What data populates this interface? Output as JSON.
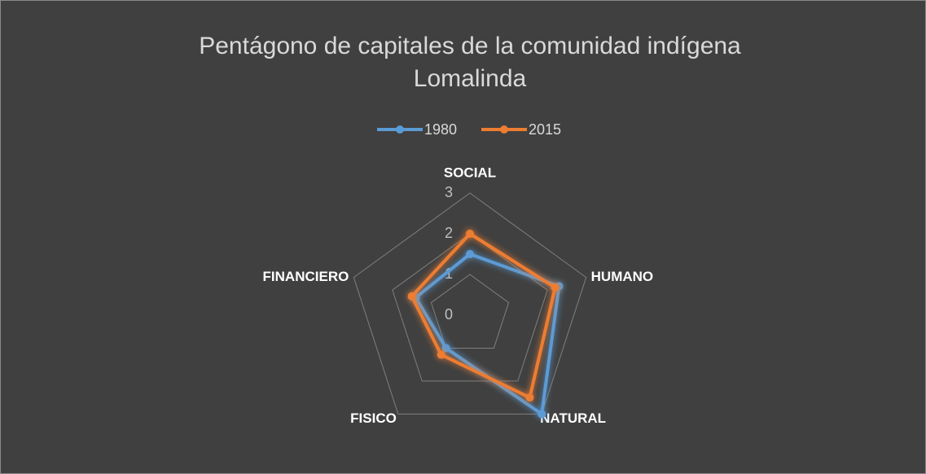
{
  "chart_data": {
    "type": "radar",
    "title": "Pentágono de capitales de la comunidad indígena Lomalinda",
    "categories": [
      "SOCIAL",
      "HUMANO",
      "NATURAL",
      "FISICO",
      "FINANCIERO"
    ],
    "series": [
      {
        "name": "1980",
        "color": "#5b9bd5",
        "values": [
          1.5,
          2.3,
          3,
          1,
          1.4
        ]
      },
      {
        "name": "2015",
        "color": "#ed7d31",
        "values": [
          2,
          2.2,
          2.5,
          1.2,
          1.5
        ]
      }
    ],
    "rlim": [
      0,
      3
    ],
    "rticks": [
      0,
      1,
      2,
      3
    ],
    "grid": true,
    "legend": "top"
  }
}
